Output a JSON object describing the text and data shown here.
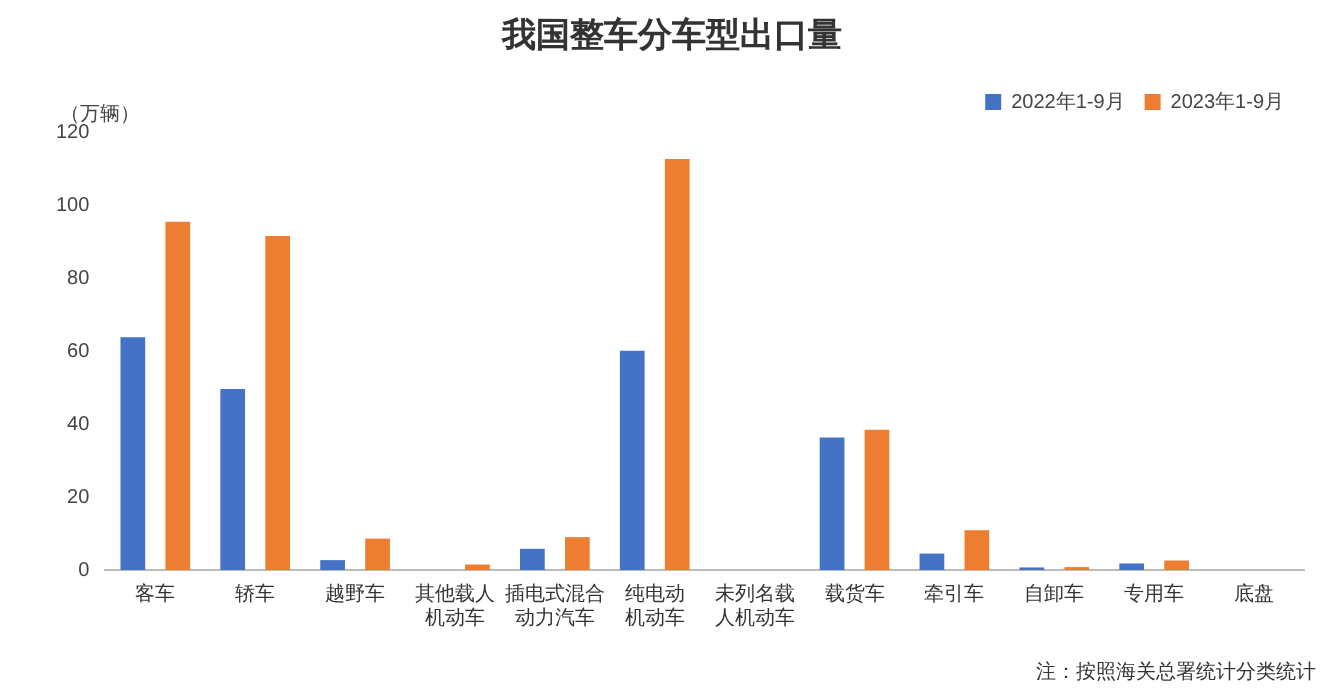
{
  "chart_data": {
    "type": "bar",
    "title": "我国整车分车型出口量",
    "ylabel": "（万辆）",
    "categories": [
      "客车",
      "轿车",
      "越野车",
      "其他载人机动车",
      "插电式混合动力汽车",
      "纯电动机动车",
      "未列名载人机动车",
      "载货车",
      "牵引车",
      "自卸车",
      "专用车",
      "底盘"
    ],
    "series": [
      {
        "name": "2022年1-9月",
        "color": "#4472c4",
        "values": [
          63.8,
          49.6,
          2.7,
          0,
          5.8,
          60.1,
          0,
          36.3,
          4.5,
          0.7,
          1.8,
          0
        ]
      },
      {
        "name": "2023年1-9月",
        "color": "#ed7d31",
        "values": [
          95.4,
          91.5,
          8.6,
          1.5,
          9,
          112.6,
          0,
          38.4,
          10.9,
          0.8,
          2.6,
          0
        ]
      }
    ],
    "ylim": [
      0,
      120
    ],
    "yticks": [
      0,
      20,
      40,
      60,
      80,
      100,
      120
    ],
    "grid": false,
    "legend": "top right",
    "annotations": [
      "注：按照海关总署统计分类统计"
    ]
  }
}
